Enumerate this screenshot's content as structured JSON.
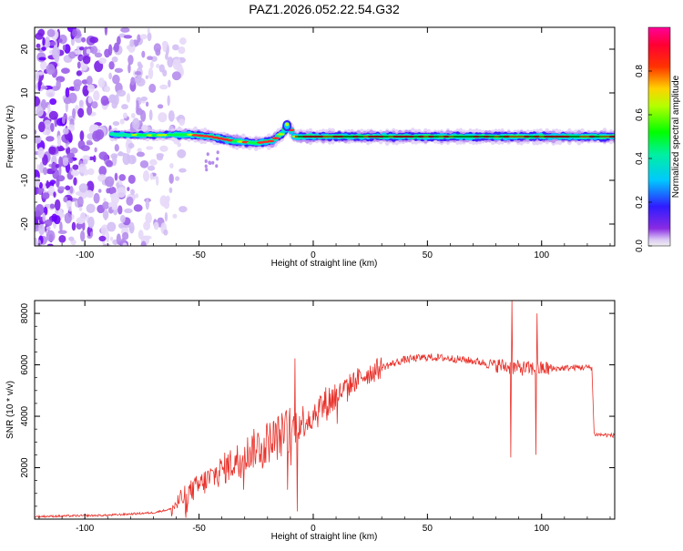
{
  "title": "PAZ1.2026.052.22.54.G32",
  "colors": {
    "snr_line": "#e8322b",
    "frame": "#000000",
    "background": "#ffffff"
  },
  "chart_data": [
    {
      "type": "heatmap",
      "xlabel": "Height of straight line (km)",
      "ylabel": "Frequency (Hz)",
      "xlim": [
        -122,
        132
      ],
      "ylim": [
        -25,
        25
      ],
      "xticks": [
        "-100",
        "-50",
        "0",
        "50",
        "100"
      ],
      "yticks": [
        "-20",
        "-10",
        "0",
        "10",
        "20"
      ],
      "colorbar": {
        "label": "Normalized spectral amplitude",
        "range": [
          0,
          1
        ],
        "ticks": [
          "0.0",
          "0.2",
          "0.4",
          "0.6",
          "0.8"
        ],
        "colormap": "hsv (violet-blue-cyan-green-yellow-red-magenta)"
      },
      "ridge_frequency": [
        {
          "height_km": -122,
          "freq_hz": 0
        },
        {
          "height_km": -90,
          "freq_hz": 0.5
        },
        {
          "height_km": -70,
          "freq_hz": 0.3
        },
        {
          "height_km": -55,
          "freq_hz": 0.5
        },
        {
          "height_km": -45,
          "freq_hz": 0
        },
        {
          "height_km": -35,
          "freq_hz": -1
        },
        {
          "height_km": -25,
          "freq_hz": -1.5
        },
        {
          "height_km": -18,
          "freq_hz": -1
        },
        {
          "height_km": -13,
          "freq_hz": 1
        },
        {
          "height_km": -11,
          "freq_hz": 2.5
        },
        {
          "height_km": -8,
          "freq_hz": 0
        },
        {
          "height_km": 0,
          "freq_hz": 0
        },
        {
          "height_km": 132,
          "freq_hz": 0
        }
      ],
      "noise_region_km": [
        -122,
        -65
      ]
    },
    {
      "type": "line",
      "xlabel": "Height of straight line (km)",
      "ylabel": "SNR (10 * v/v)",
      "xlim": [
        -122,
        132
      ],
      "ylim": [
        0,
        8500
      ],
      "xticks": [
        "-100",
        "-50",
        "0",
        "50",
        "100"
      ],
      "yticks": [
        "2000",
        "4000",
        "6000",
        "8000"
      ],
      "series": [
        {
          "values": [
            {
              "x": -122,
              "y": 100
            },
            {
              "x": -90,
              "y": 150
            },
            {
              "x": -70,
              "y": 250
            },
            {
              "x": -62,
              "y": 400
            },
            {
              "x": -55,
              "y": 1000
            },
            {
              "x": -45,
              "y": 1600
            },
            {
              "x": -35,
              "y": 2200
            },
            {
              "x": -25,
              "y": 2800
            },
            {
              "x": -15,
              "y": 3200
            },
            {
              "x": -10,
              "y": 3500
            },
            {
              "x": -5,
              "y": 3800
            },
            {
              "x": 0,
              "y": 4100
            },
            {
              "x": 10,
              "y": 4800
            },
            {
              "x": 20,
              "y": 5500
            },
            {
              "x": 30,
              "y": 5900
            },
            {
              "x": 40,
              "y": 6200
            },
            {
              "x": 50,
              "y": 6300
            },
            {
              "x": 60,
              "y": 6250
            },
            {
              "x": 70,
              "y": 6150
            },
            {
              "x": 80,
              "y": 6000
            },
            {
              "x": 87,
              "y": 5900
            },
            {
              "x": 95,
              "y": 5850
            },
            {
              "x": 105,
              "y": 5850
            },
            {
              "x": 115,
              "y": 5900
            },
            {
              "x": 122,
              "y": 5900
            },
            {
              "x": 123,
              "y": 3300
            },
            {
              "x": 132,
              "y": 3250
            }
          ],
          "spikes": [
            {
              "x": -8,
              "y": 6250
            },
            {
              "x": -7,
              "y": 300
            },
            {
              "x": 87,
              "y": 8500
            },
            {
              "x": 86.5,
              "y": 2400
            },
            {
              "x": 98,
              "y": 8000
            },
            {
              "x": 97.5,
              "y": 2500
            }
          ]
        }
      ]
    }
  ]
}
